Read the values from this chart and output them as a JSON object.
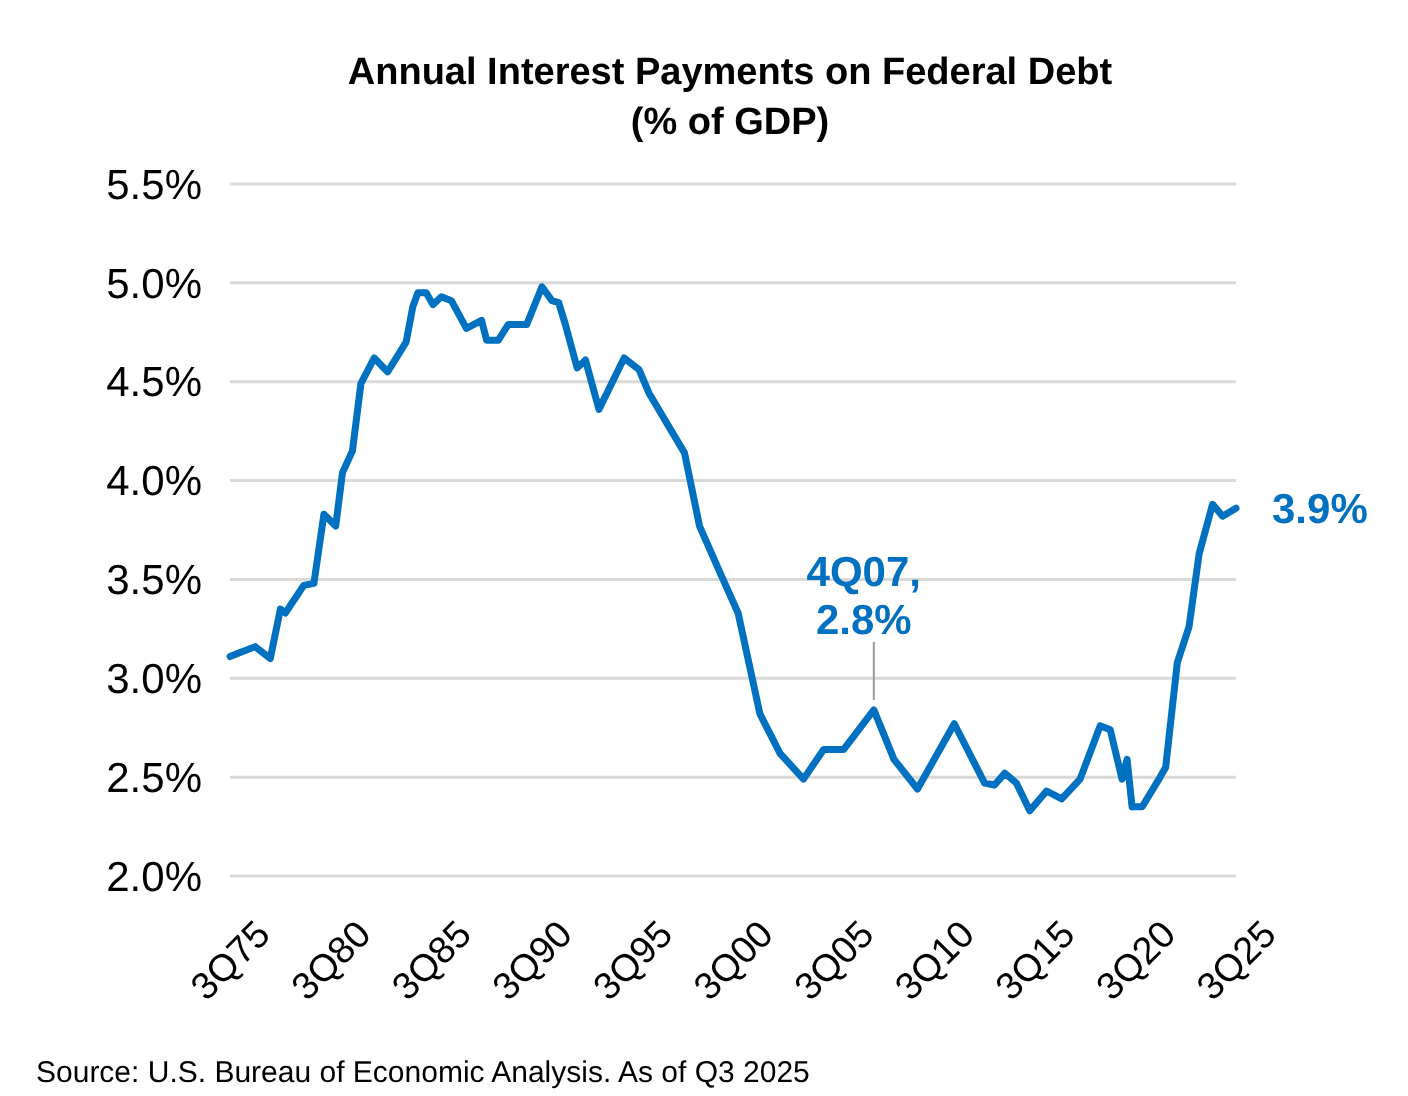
{
  "chart_data": {
    "type": "line",
    "title": "Annual Interest Payments on Federal Debt",
    "subtitle": "(% of GDP)",
    "xlim": [
      "1975-07",
      "2025-07"
    ],
    "xticks": [
      {
        "value": "1975-07",
        "label": "3Q75"
      },
      {
        "value": "1980-07",
        "label": "3Q80"
      },
      {
        "value": "1985-07",
        "label": "3Q85"
      },
      {
        "value": "1990-07",
        "label": "3Q90"
      },
      {
        "value": "1995-07",
        "label": "3Q95"
      },
      {
        "value": "2000-07",
        "label": "3Q00"
      },
      {
        "value": "2005-07",
        "label": "3Q05"
      },
      {
        "value": "2010-07",
        "label": "3Q10"
      },
      {
        "value": "2015-07",
        "label": "3Q15"
      },
      {
        "value": "2020-07",
        "label": "3Q20"
      },
      {
        "value": "2025-07",
        "label": "3Q25"
      }
    ],
    "ylim": [
      2.0,
      5.5
    ],
    "yticks": [
      {
        "value": 2.0,
        "label": "2.0%"
      },
      {
        "value": 2.5,
        "label": "2.5%"
      },
      {
        "value": 3.0,
        "label": "3.0%"
      },
      {
        "value": 3.5,
        "label": "3.5%"
      },
      {
        "value": 4.0,
        "label": "4.0%"
      },
      {
        "value": 4.5,
        "label": "4.5%"
      },
      {
        "value": 5.0,
        "label": "5.0%"
      },
      {
        "value": 5.5,
        "label": "5.5%"
      }
    ],
    "grid": "y",
    "marker": "none",
    "line_style": "solid",
    "series": [
      {
        "color": "#0070c0",
        "x": [
          "1975-07",
          "1976-01",
          "1976-10",
          "1977-07",
          "1978-01",
          "1978-04",
          "1979-03",
          "1979-09",
          "1980-03",
          "1980-10",
          "1981-02",
          "1981-08",
          "1982-01",
          "1982-09",
          "1983-05",
          "1984-04",
          "1984-08",
          "1984-11",
          "1985-04",
          "1985-08",
          "1986-01",
          "1986-07",
          "1987-04",
          "1988-01",
          "1988-04",
          "1988-11",
          "1989-05",
          "1990-04",
          "1991-01",
          "1991-07",
          "1991-11",
          "1992-03",
          "1992-10",
          "1993-03",
          "1993-11",
          "1995-02",
          "1995-11",
          "1996-05",
          "1998-02",
          "1998-11",
          "2000-01",
          "2000-10",
          "2001-11",
          "2002-11",
          "2004-01",
          "2005-01",
          "2006-01",
          "2007-07",
          "2008-07",
          "2009-09",
          "2011-07",
          "2013-01",
          "2013-07",
          "2014-01",
          "2014-08",
          "2015-04",
          "2016-02",
          "2016-11",
          "2017-10",
          "2018-10",
          "2019-04",
          "2019-11",
          "2020-02",
          "2020-05",
          "2020-11",
          "2021-09",
          "2022-01",
          "2022-08",
          "2023-03",
          "2023-09",
          "2024-05",
          "2024-11",
          "2025-07"
        ],
        "values": [
          3.11,
          3.13,
          3.16,
          3.1,
          3.35,
          3.33,
          3.47,
          3.48,
          3.83,
          3.77,
          4.04,
          4.15,
          4.49,
          4.62,
          4.55,
          4.7,
          4.88,
          4.95,
          4.95,
          4.89,
          4.93,
          4.91,
          4.77,
          4.81,
          4.71,
          4.71,
          4.79,
          4.79,
          4.98,
          4.91,
          4.9,
          4.79,
          4.57,
          4.61,
          4.36,
          4.62,
          4.56,
          4.44,
          4.14,
          3.77,
          3.5,
          3.33,
          2.82,
          2.62,
          2.49,
          2.64,
          2.64,
          2.84,
          2.59,
          2.44,
          2.77,
          2.47,
          2.46,
          2.52,
          2.47,
          2.33,
          2.43,
          2.39,
          2.49,
          2.76,
          2.74,
          2.49,
          2.59,
          2.35,
          2.35,
          2.49,
          2.55,
          3.08,
          3.26,
          3.63,
          3.88,
          3.82,
          3.86
        ]
      }
    ],
    "annotations": [
      {
        "text": "4Q07, 2.8%",
        "x": "2007-07",
        "y": 2.84
      },
      {
        "text": "3.9%",
        "x": "2025-07",
        "y": 3.86
      },
      "Source: U.S. Bureau of Economic Analysis. As of Q3 2025"
    ]
  }
}
